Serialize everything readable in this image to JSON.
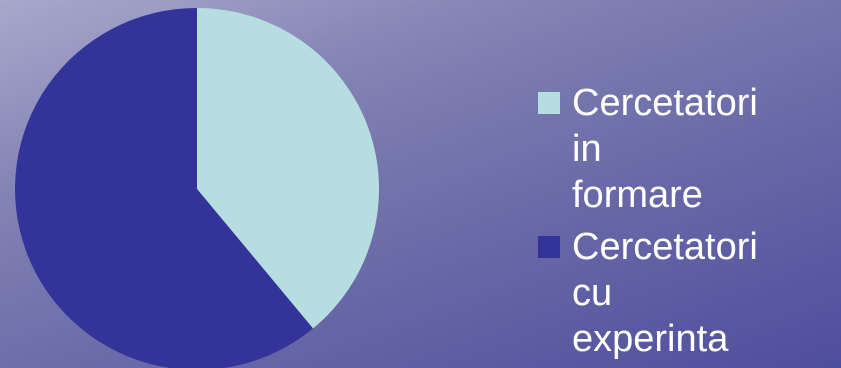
{
  "chart_data": {
    "type": "pie",
    "title": "",
    "legend": "right",
    "slices": [
      {
        "label": "Cercetatori in formare",
        "value": 39,
        "color": "#b6dde0"
      },
      {
        "label": "Cercetatori cu experinta",
        "value": 61,
        "color": "#333399"
      }
    ]
  }
}
